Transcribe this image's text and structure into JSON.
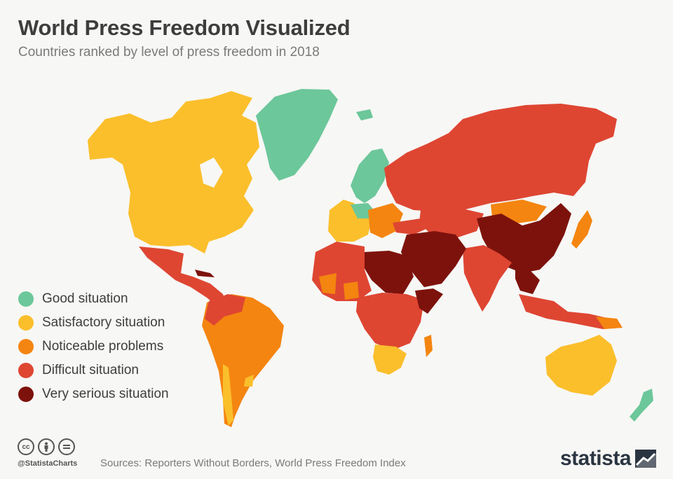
{
  "title": "World Press Freedom Visualized",
  "subtitle": "Countries ranked by level of press freedom in 2018",
  "colors": {
    "good": "#6cc79a",
    "satisfactory": "#fbbf2c",
    "noticeable": "#f48510",
    "difficult": "#de4632",
    "very_serious": "#7d120c",
    "text_dark": "#3d3d3d",
    "text_grey": "#7a7a7a"
  },
  "legend": [
    {
      "label": "Good situation",
      "color": "#6cc79a"
    },
    {
      "label": "Satisfactory situation",
      "color": "#fbbf2c"
    },
    {
      "label": "Noticeable problems",
      "color": "#f48510"
    },
    {
      "label": "Difficult situation",
      "color": "#de4632"
    },
    {
      "label": "Very serious situation",
      "color": "#7d120c"
    }
  ],
  "footer": {
    "handle": "@StatistaCharts",
    "source": "Sources: Reporters Without Borders, World Press Freedom Index",
    "logo": "statista",
    "icons": [
      "cc-icon",
      "attribution-icon",
      "no-derivatives-icon"
    ]
  }
}
